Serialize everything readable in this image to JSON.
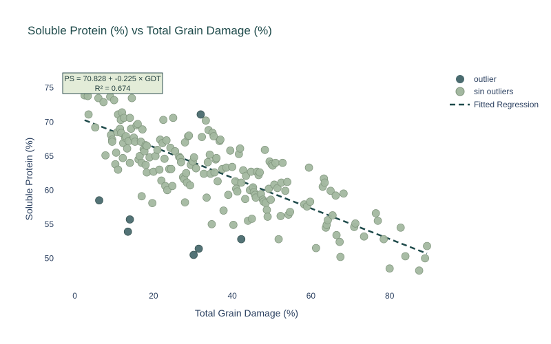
{
  "chart_data": {
    "type": "scatter",
    "title": "Soluble Protein (%) vs Total Grain Damage (%)",
    "xlabel": "Total Grain Damage (%)",
    "ylabel": "Soluble Protein (%)",
    "xlim": [
      -5,
      93
    ],
    "ylim": [
      45.5,
      78
    ],
    "xticks": [
      0,
      20,
      40,
      60,
      80
    ],
    "yticks": [
      50,
      55,
      60,
      65,
      70,
      75
    ],
    "grid": false,
    "legend_position": "top-right",
    "colors": {
      "outlier": "#4a6b6f",
      "inlier": "#a3b8a0",
      "inlier_edge": "#7f947c",
      "regression": "#1e4a4a"
    },
    "annotation": {
      "line1": "PS = 70.828 + -0.225 × GDT",
      "line2": "R² = 0.674",
      "x": 12,
      "y": 74.8
    },
    "regression": {
      "name": "Fitted Regression",
      "intercept": 70.828,
      "slope": -0.225,
      "x_range": [
        2.5,
        89.5
      ]
    },
    "series": [
      {
        "name": "outlier",
        "points": [
          [
            6.2,
            58.5
          ],
          [
            13.5,
            53.9
          ],
          [
            14.0,
            55.7
          ],
          [
            30.2,
            50.5
          ],
          [
            31.5,
            51.4
          ],
          [
            32.0,
            71.1
          ],
          [
            42.3,
            52.8
          ]
        ]
      },
      {
        "name": "sin outliers",
        "points": [
          [
            2.5,
            73.9
          ],
          [
            3.3,
            73.8
          ],
          [
            3.5,
            71.1
          ],
          [
            5.2,
            69.2
          ],
          [
            6.0,
            73.5
          ],
          [
            7.3,
            72.9
          ],
          [
            7.8,
            65.1
          ],
          [
            9.0,
            73.7
          ],
          [
            9.2,
            68.1
          ],
          [
            9.5,
            67.4
          ],
          [
            9.5,
            67.1
          ],
          [
            10.0,
            73.2
          ],
          [
            10.3,
            63.8
          ],
          [
            10.5,
            65.5
          ],
          [
            10.8,
            68.5
          ],
          [
            11.0,
            63.0
          ],
          [
            11.0,
            71.1
          ],
          [
            11.5,
            69.0
          ],
          [
            11.7,
            70.3
          ],
          [
            11.8,
            68.4
          ],
          [
            12.0,
            71.4
          ],
          [
            12.2,
            64.7
          ],
          [
            12.3,
            66.9
          ],
          [
            12.5,
            70.6
          ],
          [
            12.8,
            67.7
          ],
          [
            13.0,
            67.9
          ],
          [
            13.3,
            66.1
          ],
          [
            13.7,
            67.2
          ],
          [
            14.0,
            70.6
          ],
          [
            14.0,
            64.0
          ],
          [
            14.3,
            69.0
          ],
          [
            14.5,
            73.5
          ],
          [
            15.0,
            67.7
          ],
          [
            15.3,
            67.1
          ],
          [
            15.7,
            69.5
          ],
          [
            16.0,
            69.7
          ],
          [
            16.2,
            64.5
          ],
          [
            16.5,
            65.0
          ],
          [
            16.8,
            67.1
          ],
          [
            17.0,
            64.0
          ],
          [
            17.0,
            59.1
          ],
          [
            17.2,
            68.9
          ],
          [
            17.5,
            66.0
          ],
          [
            17.7,
            65.7
          ],
          [
            18.0,
            66.6
          ],
          [
            18.0,
            63.7
          ],
          [
            18.3,
            62.6
          ],
          [
            18.3,
            66.5
          ],
          [
            19.0,
            64.8
          ],
          [
            19.7,
            58.1
          ],
          [
            20.0,
            62.7
          ],
          [
            20.5,
            65.0
          ],
          [
            21.0,
            65.9
          ],
          [
            21.5,
            63.0
          ],
          [
            21.7,
            67.4
          ],
          [
            22.0,
            61.4
          ],
          [
            22.3,
            66.9
          ],
          [
            22.5,
            70.3
          ],
          [
            22.8,
            64.6
          ],
          [
            23.0,
            60.6
          ],
          [
            23.3,
            67.3
          ],
          [
            23.5,
            60.0
          ],
          [
            24.0,
            63.1
          ],
          [
            24.3,
            66.2
          ],
          [
            24.5,
            63.1
          ],
          [
            24.8,
            60.6
          ],
          [
            25.0,
            70.6
          ],
          [
            25.5,
            65.7
          ],
          [
            26.5,
            64.9
          ],
          [
            26.8,
            64.7
          ],
          [
            27.0,
            64.1
          ],
          [
            27.5,
            61.9
          ],
          [
            27.8,
            61.6
          ],
          [
            28.0,
            58.2
          ],
          [
            28.0,
            67.0
          ],
          [
            28.3,
            62.5
          ],
          [
            28.5,
            61.1
          ],
          [
            28.8,
            67.9
          ],
          [
            29.0,
            68.0
          ],
          [
            29.3,
            60.7
          ],
          [
            29.5,
            63.7
          ],
          [
            30.0,
            64.2
          ],
          [
            30.3,
            64.8
          ],
          [
            30.8,
            63.2
          ],
          [
            32.3,
            67.8
          ],
          [
            32.8,
            62.4
          ],
          [
            33.3,
            70.2
          ],
          [
            33.5,
            58.9
          ],
          [
            33.8,
            64.1
          ],
          [
            34.0,
            68.8
          ],
          [
            34.3,
            65.2
          ],
          [
            34.5,
            62.4
          ],
          [
            34.8,
            55.0
          ],
          [
            35.0,
            68.4
          ],
          [
            35.3,
            67.9
          ],
          [
            35.5,
            62.6
          ],
          [
            35.8,
            64.5
          ],
          [
            36.0,
            64.7
          ],
          [
            36.3,
            61.3
          ],
          [
            36.8,
            67.2
          ],
          [
            37.0,
            67.4
          ],
          [
            37.5,
            63.1
          ],
          [
            37.8,
            57.0
          ],
          [
            38.5,
            63.3
          ],
          [
            39.0,
            59.3
          ],
          [
            39.5,
            65.8
          ],
          [
            40.0,
            63.4
          ],
          [
            40.3,
            54.9
          ],
          [
            40.8,
            61.3
          ],
          [
            41.0,
            60.2
          ],
          [
            41.3,
            59.8
          ],
          [
            41.7,
            65.3
          ],
          [
            42.0,
            66.1
          ],
          [
            42.3,
            61.1
          ],
          [
            42.8,
            62.9
          ],
          [
            43.3,
            58.7
          ],
          [
            43.5,
            62.1
          ],
          [
            44.0,
            55.5
          ],
          [
            44.5,
            60.0
          ],
          [
            44.8,
            62.7
          ],
          [
            45.0,
            55.8
          ],
          [
            45.3,
            60.4
          ],
          [
            45.5,
            59.7
          ],
          [
            45.8,
            59.3
          ],
          [
            46.0,
            58.9
          ],
          [
            46.3,
            62.7
          ],
          [
            46.7,
            62.2
          ],
          [
            47.0,
            62.6
          ],
          [
            47.3,
            59.4
          ],
          [
            47.8,
            58.6
          ],
          [
            48.0,
            58.3
          ],
          [
            48.3,
            65.9
          ],
          [
            48.5,
            58.1
          ],
          [
            48.8,
            57.1
          ],
          [
            49.0,
            56.1
          ],
          [
            49.3,
            60.2
          ],
          [
            49.5,
            64.2
          ],
          [
            49.8,
            58.6
          ],
          [
            50.0,
            63.8
          ],
          [
            50.3,
            63.6
          ],
          [
            50.7,
            60.8
          ],
          [
            51.0,
            64.0
          ],
          [
            51.5,
            60.3
          ],
          [
            51.8,
            52.8
          ],
          [
            52.3,
            56.2
          ],
          [
            52.5,
            61.1
          ],
          [
            52.8,
            64.0
          ],
          [
            53.5,
            59.9
          ],
          [
            54.0,
            61.2
          ],
          [
            54.3,
            56.4
          ],
          [
            54.7,
            56.8
          ],
          [
            58.3,
            57.9
          ],
          [
            59.0,
            57.6
          ],
          [
            59.5,
            63.3
          ],
          [
            59.8,
            58.3
          ],
          [
            61.3,
            51.5
          ],
          [
            63.0,
            60.5
          ],
          [
            63.3,
            61.7
          ],
          [
            63.5,
            61.1
          ],
          [
            63.8,
            54.5
          ],
          [
            64.0,
            54.9
          ],
          [
            64.3,
            55.6
          ],
          [
            65.0,
            59.9
          ],
          [
            65.5,
            56.3
          ],
          [
            66.3,
            59.2
          ],
          [
            66.5,
            53.4
          ],
          [
            67.3,
            52.4
          ],
          [
            67.5,
            50.2
          ],
          [
            68.3,
            59.5
          ],
          [
            71.0,
            54.6
          ],
          [
            71.3,
            55.1
          ],
          [
            73.5,
            53.2
          ],
          [
            76.5,
            56.6
          ],
          [
            77.0,
            55.5
          ],
          [
            78.5,
            52.8
          ],
          [
            80.0,
            48.5
          ],
          [
            82.8,
            54.5
          ],
          [
            84.0,
            50.3
          ],
          [
            87.5,
            48.2
          ],
          [
            89.0,
            50.0
          ],
          [
            89.5,
            51.8
          ]
        ]
      }
    ]
  }
}
